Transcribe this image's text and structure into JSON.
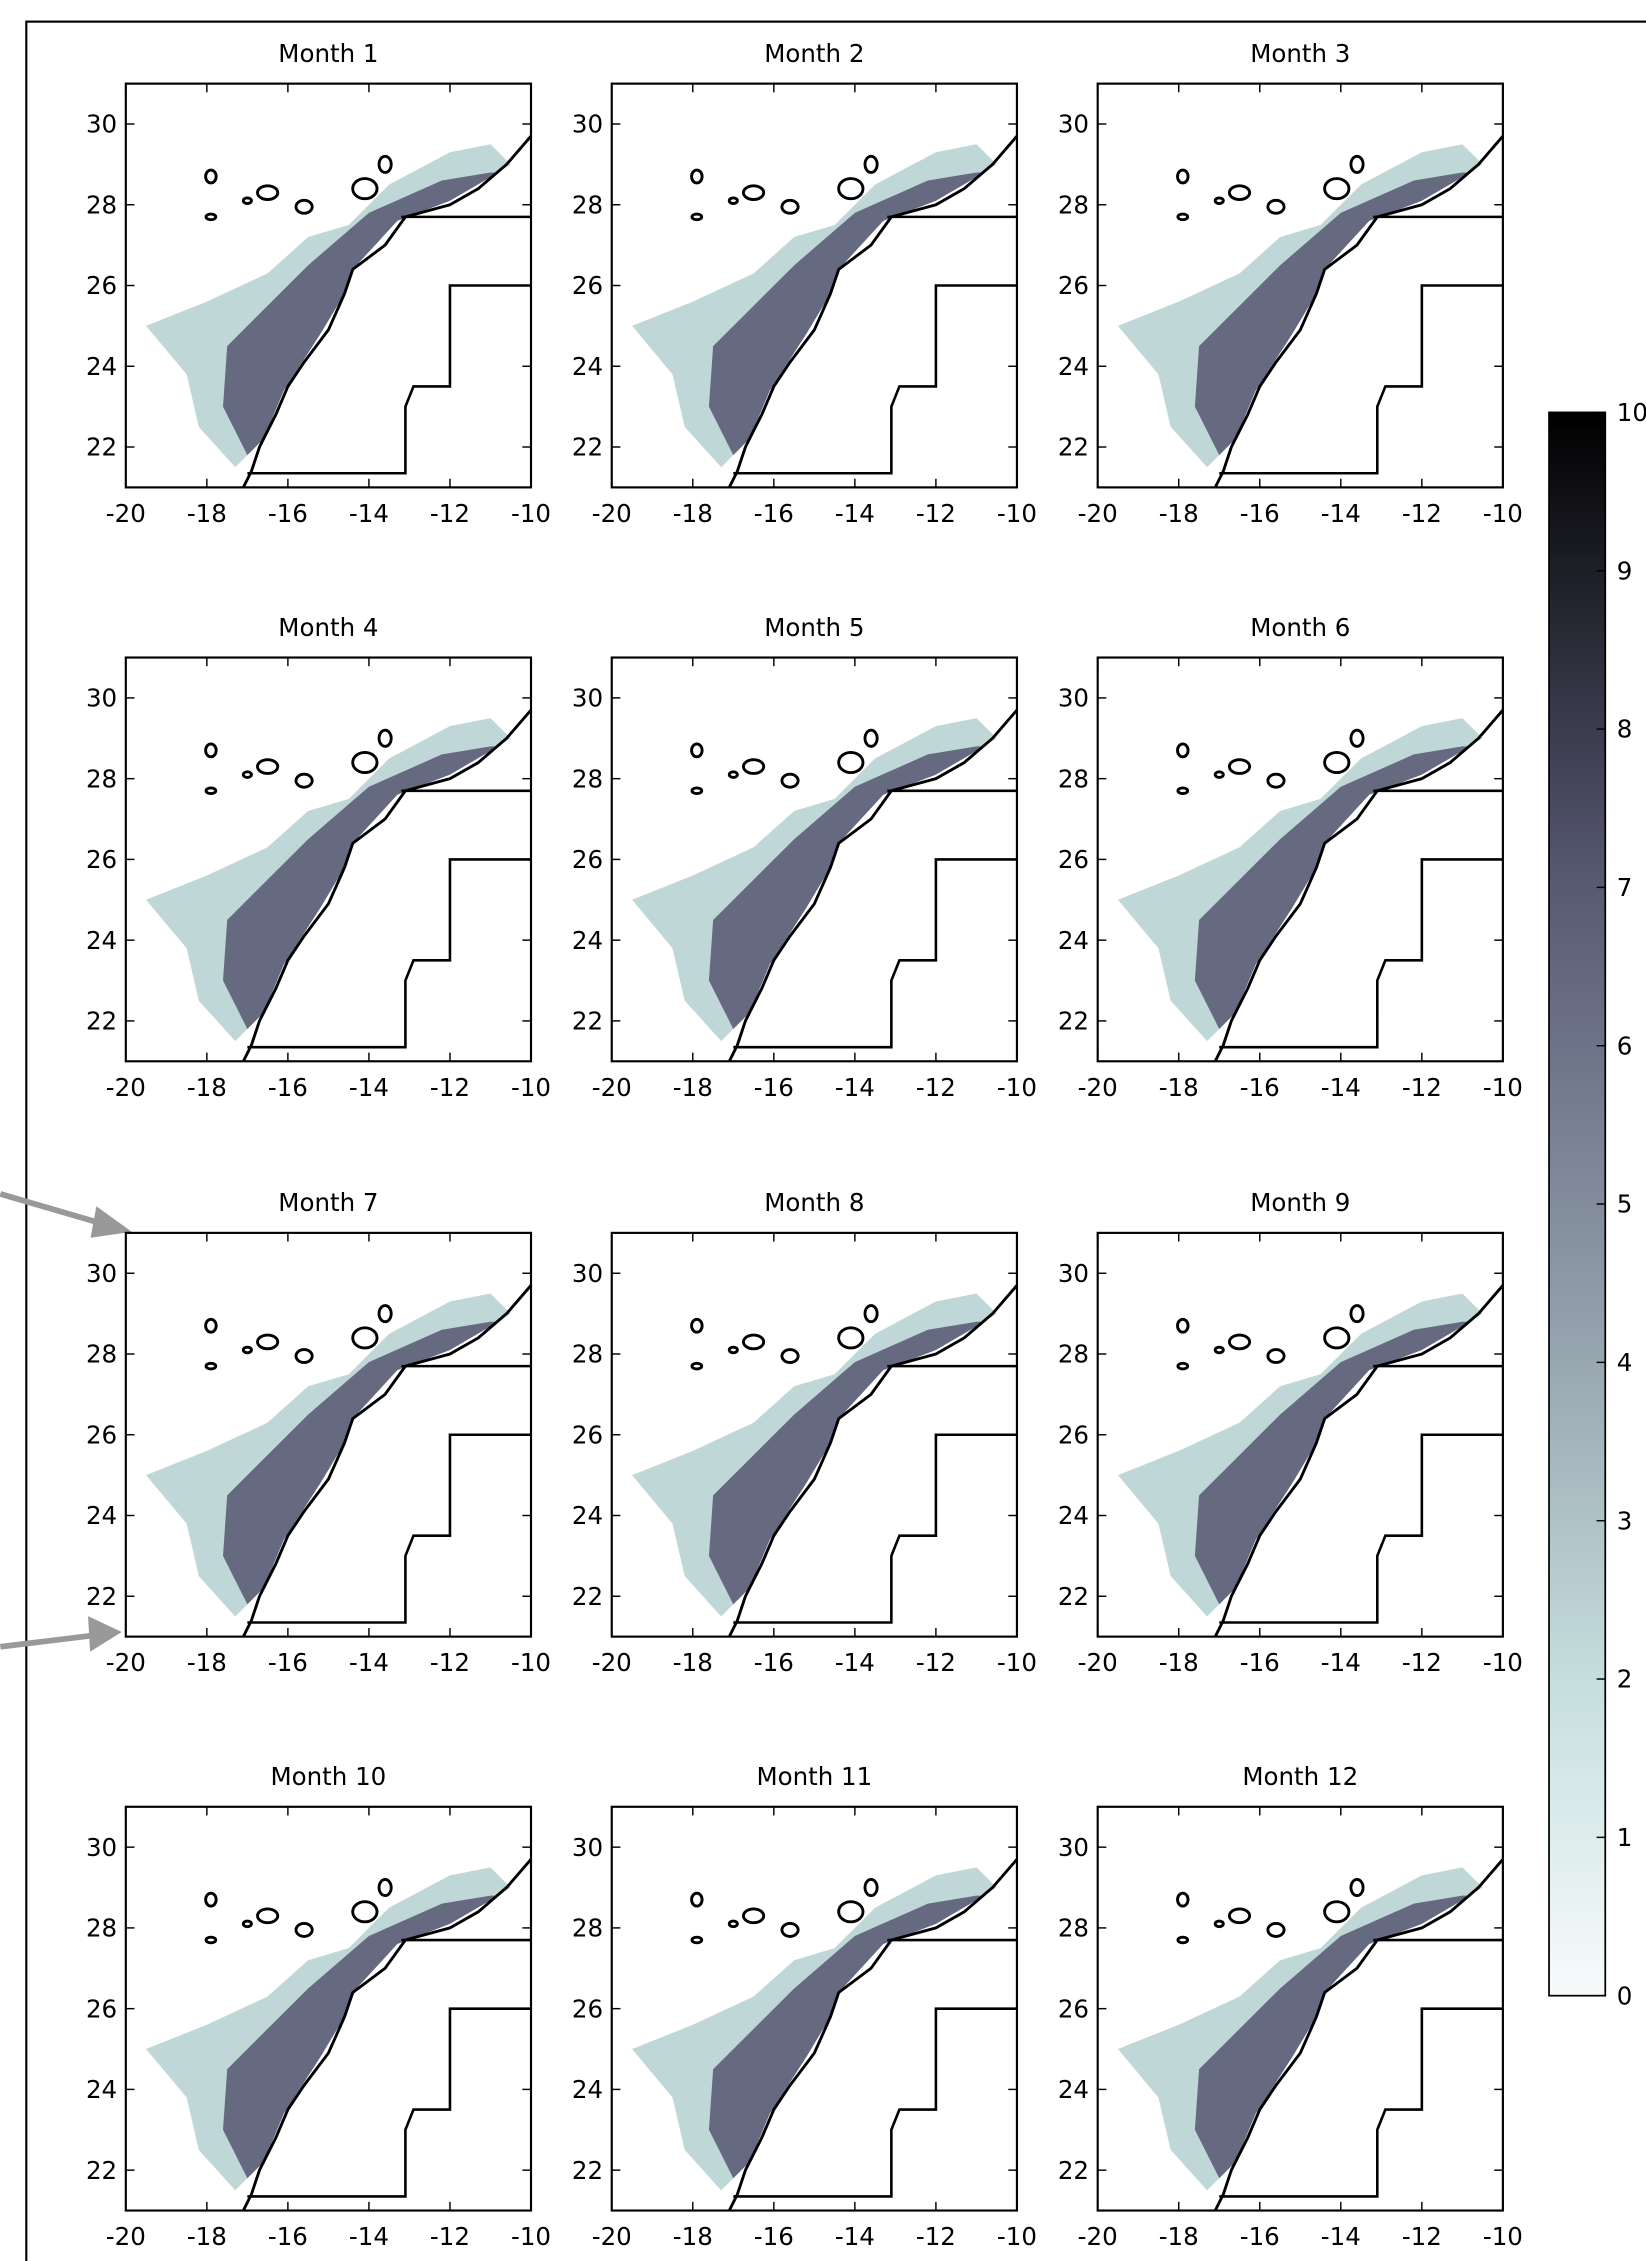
{
  "chart_data": [
    {
      "type": "map",
      "title": "Month 1",
      "xlim": [
        -20,
        -10
      ],
      "ylim": [
        21,
        31
      ],
      "xticks": [
        -20,
        -18,
        -16,
        -14,
        -12,
        -10
      ],
      "yticks": [
        22,
        24,
        26,
        28,
        30
      ]
    },
    {
      "type": "map",
      "title": "Month 2",
      "xlim": [
        -20,
        -10
      ],
      "ylim": [
        21,
        31
      ],
      "xticks": [
        -20,
        -18,
        -16,
        -14,
        -12,
        -10
      ],
      "yticks": [
        22,
        24,
        26,
        28,
        30
      ]
    },
    {
      "type": "map",
      "title": "Month 3",
      "xlim": [
        -20,
        -10
      ],
      "ylim": [
        21,
        31
      ],
      "xticks": [
        -20,
        -18,
        -16,
        -14,
        -12,
        -10
      ],
      "yticks": [
        22,
        24,
        26,
        28,
        30
      ]
    },
    {
      "type": "map",
      "title": "Month 4",
      "xlim": [
        -20,
        -10
      ],
      "ylim": [
        21,
        31
      ],
      "xticks": [
        -20,
        -18,
        -16,
        -14,
        -12,
        -10
      ],
      "yticks": [
        22,
        24,
        26,
        28,
        30
      ]
    },
    {
      "type": "map",
      "title": "Month 5",
      "xlim": [
        -20,
        -10
      ],
      "ylim": [
        21,
        31
      ],
      "xticks": [
        -20,
        -18,
        -16,
        -14,
        -12,
        -10
      ],
      "yticks": [
        22,
        24,
        26,
        28,
        30
      ]
    },
    {
      "type": "map",
      "title": "Month 6",
      "xlim": [
        -20,
        -10
      ],
      "ylim": [
        21,
        31
      ],
      "xticks": [
        -20,
        -18,
        -16,
        -14,
        -12,
        -10
      ],
      "yticks": [
        22,
        24,
        26,
        28,
        30
      ]
    },
    {
      "type": "map",
      "title": "Month 7",
      "xlim": [
        -20,
        -10
      ],
      "ylim": [
        21,
        31
      ],
      "xticks": [
        -20,
        -18,
        -16,
        -14,
        -12,
        -10
      ],
      "yticks": [
        22,
        24,
        26,
        28,
        30
      ]
    },
    {
      "type": "map",
      "title": "Month 8",
      "xlim": [
        -20,
        -10
      ],
      "ylim": [
        21,
        31
      ],
      "xticks": [
        -20,
        -18,
        -16,
        -14,
        -12,
        -10
      ],
      "yticks": [
        22,
        24,
        26,
        28,
        30
      ]
    },
    {
      "type": "map",
      "title": "Month 9",
      "xlim": [
        -20,
        -10
      ],
      "ylim": [
        21,
        31
      ],
      "xticks": [
        -20,
        -18,
        -16,
        -14,
        -12,
        -10
      ],
      "yticks": [
        22,
        24,
        26,
        28,
        30
      ]
    },
    {
      "type": "map",
      "title": "Month 10",
      "xlim": [
        -20,
        -10
      ],
      "ylim": [
        21,
        31
      ],
      "xticks": [
        -20,
        -18,
        -16,
        -14,
        -12,
        -10
      ],
      "yticks": [
        22,
        24,
        26,
        28,
        30
      ]
    },
    {
      "type": "map",
      "title": "Month 11",
      "xlim": [
        -20,
        -10
      ],
      "ylim": [
        21,
        31
      ],
      "xticks": [
        -20,
        -18,
        -16,
        -14,
        -12,
        -10
      ],
      "yticks": [
        22,
        24,
        26,
        28,
        30
      ]
    },
    {
      "type": "map",
      "title": "Month 12",
      "xlim": [
        -20,
        -10
      ],
      "ylim": [
        21,
        31
      ],
      "xticks": [
        -20,
        -18,
        -16,
        -14,
        -12,
        -10
      ],
      "yticks": [
        22,
        24,
        26,
        28,
        30
      ]
    },
    {
      "type": "colorbar",
      "ylim": [
        0,
        10
      ],
      "yticks": [
        0,
        1,
        2,
        3,
        4,
        5,
        6,
        7,
        8,
        9,
        10
      ]
    }
  ]
}
